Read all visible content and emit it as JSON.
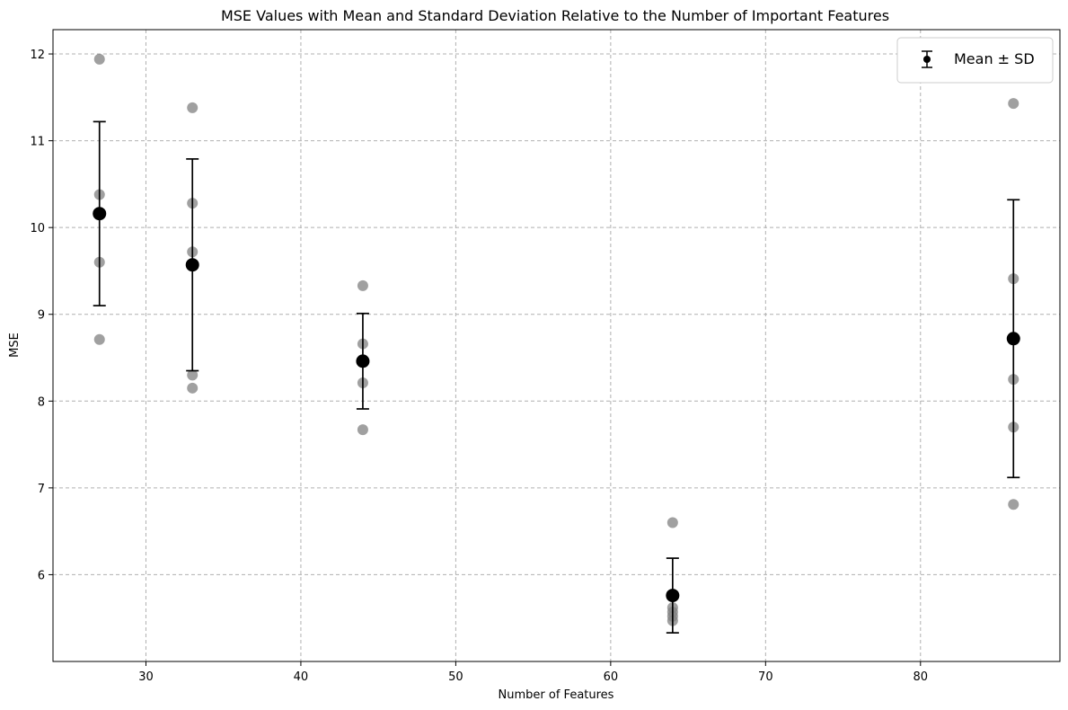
{
  "chart_data": {
    "type": "scatter",
    "title": "MSE Values with Mean and Standard Deviation Relative to the Number of Important Features",
    "xlabel": "Number of Features",
    "ylabel": "MSE",
    "xlim": [
      24,
      89
    ],
    "ylim": [
      5.0,
      12.28
    ],
    "xticks": [
      30,
      40,
      50,
      60,
      70,
      80
    ],
    "yticks": [
      6,
      7,
      8,
      9,
      10,
      11,
      12
    ],
    "grid": true,
    "legend": {
      "position": "top-right",
      "entries": [
        "Mean ± SD"
      ]
    },
    "colors": {
      "points": "#808080",
      "mean": "#000000",
      "grid": "#b0b0b0"
    },
    "individual_points": [
      {
        "x": 27,
        "values": [
          11.94,
          10.38,
          9.6,
          8.71
        ]
      },
      {
        "x": 33,
        "values": [
          11.38,
          10.28,
          9.72,
          8.3,
          8.15
        ]
      },
      {
        "x": 44,
        "values": [
          9.33,
          8.66,
          8.21,
          7.67
        ]
      },
      {
        "x": 64,
        "values": [
          6.6,
          5.62,
          5.57,
          5.52,
          5.47
        ]
      },
      {
        "x": 86,
        "values": [
          11.43,
          9.41,
          8.25,
          7.7,
          6.81
        ]
      }
    ],
    "mean_sd": [
      {
        "x": 27,
        "mean": 10.16,
        "sd": 1.06
      },
      {
        "x": 33,
        "mean": 9.57,
        "sd": 1.22
      },
      {
        "x": 44,
        "mean": 8.46,
        "sd": 0.55
      },
      {
        "x": 64,
        "mean": 5.76,
        "sd": 0.43
      },
      {
        "x": 86,
        "mean": 8.72,
        "sd": 1.6
      }
    ]
  }
}
